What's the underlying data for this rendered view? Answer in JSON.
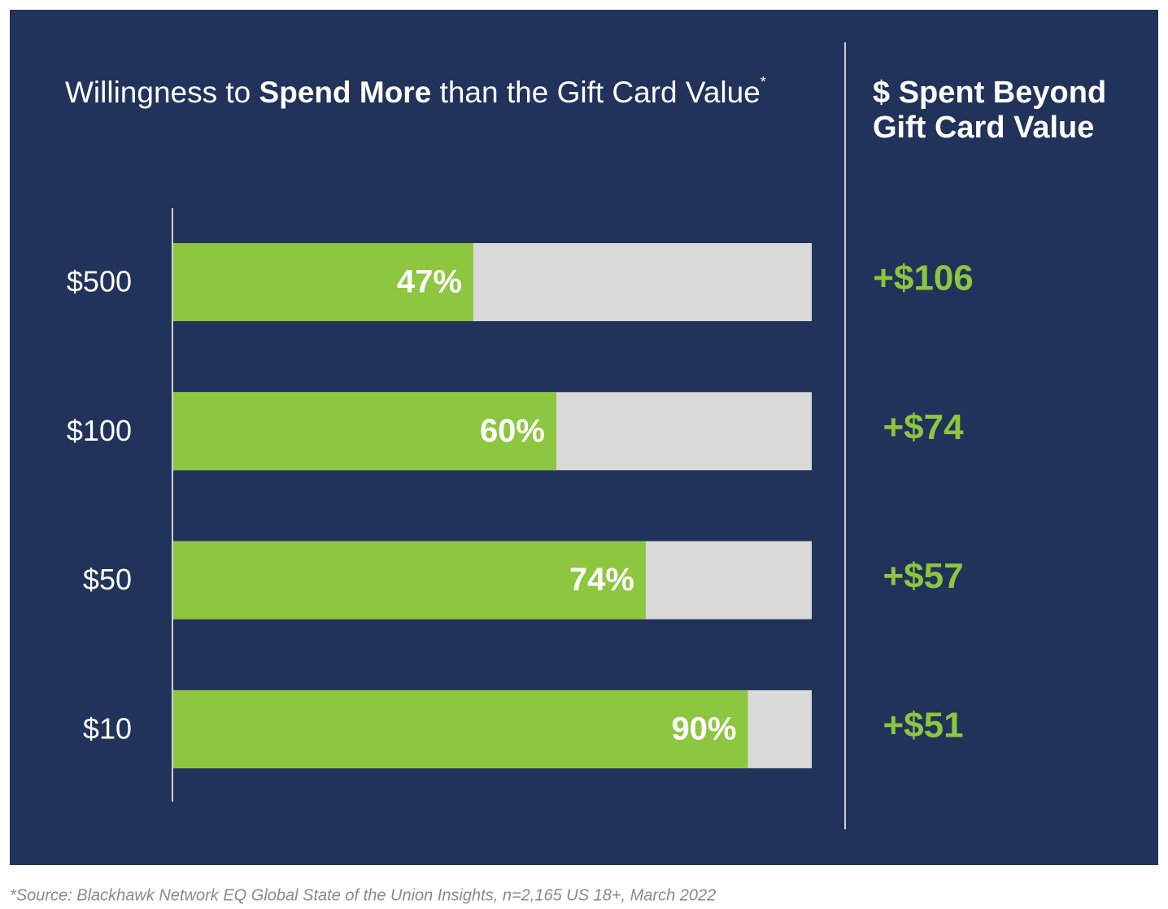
{
  "chart_data": {
    "type": "bar",
    "orientation": "horizontal",
    "title_segments": [
      "Willingness to",
      "Spend More",
      "than the Gift Card Value",
      "*"
    ],
    "categories": [
      "$500",
      "$100",
      "$50",
      "$10"
    ],
    "values": [
      47,
      60,
      74,
      90
    ],
    "value_labels": [
      "47%",
      "60%",
      "74%",
      "90%"
    ],
    "color": "#8dc63f",
    "track_color": "#d9d9d9",
    "xlim": [
      0,
      100
    ],
    "side_column": {
      "title_lines": [
        "$ Spent Beyond",
        "Gift Card Value"
      ],
      "values": [
        106,
        74,
        57,
        51
      ],
      "value_labels": [
        "+$106",
        "+$74",
        "+$57",
        "+$51"
      ],
      "color": "#8dc63f"
    },
    "footnote": "*Source: Blackhawk Network EQ Global State of the Union Insights, n=2,165 US 18+, March 2022"
  }
}
